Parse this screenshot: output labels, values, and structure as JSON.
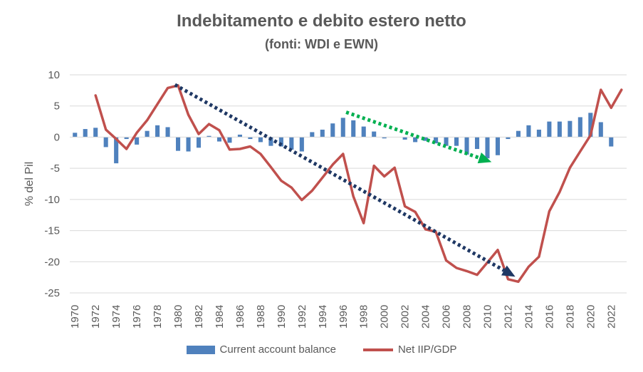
{
  "chart_data": {
    "type": "bar+line",
    "title": "Indebitamento e debito estero netto",
    "subtitle": "(fonti: WDI e EWN)",
    "ylabel": "% del Pil",
    "ylim": [
      -25,
      10
    ],
    "yticks": [
      10,
      5,
      0,
      -5,
      -10,
      -15,
      -20,
      -25
    ],
    "x": [
      1970,
      1971,
      1972,
      1973,
      1974,
      1975,
      1976,
      1977,
      1978,
      1979,
      1980,
      1981,
      1982,
      1983,
      1984,
      1985,
      1986,
      1987,
      1988,
      1989,
      1990,
      1991,
      1992,
      1993,
      1994,
      1995,
      1996,
      1997,
      1998,
      1999,
      2000,
      2001,
      2002,
      2003,
      2004,
      2005,
      2006,
      2007,
      2008,
      2009,
      2010,
      2011,
      2012,
      2013,
      2014,
      2015,
      2016,
      2017,
      2018,
      2019,
      2020,
      2021,
      2022,
      2023
    ],
    "xtick_labels": [
      "1970",
      "1972",
      "1974",
      "1976",
      "1978",
      "1980",
      "1982",
      "1984",
      "1986",
      "1988",
      "1990",
      "1992",
      "1994",
      "1996",
      "1998",
      "2000",
      "2002",
      "2004",
      "2006",
      "2008",
      "2010",
      "2012",
      "2014",
      "2016",
      "2018",
      "2020",
      "2022"
    ],
    "grid": true,
    "legend_position": "bottom",
    "series": [
      {
        "name": "Current account balance",
        "type": "bar",
        "color": "#4F81BD",
        "values": [
          0.7,
          1.3,
          1.5,
          -1.6,
          -4.2,
          -0.3,
          -1.2,
          1.0,
          1.9,
          1.6,
          -2.2,
          -2.3,
          -1.7,
          0.2,
          -0.7,
          -0.9,
          0.4,
          -0.3,
          -0.8,
          -1.4,
          -1.5,
          -2.0,
          -2.3,
          0.8,
          1.2,
          2.2,
          3.1,
          2.7,
          1.7,
          0.9,
          -0.2,
          0.0,
          -0.4,
          -0.8,
          -0.6,
          -1.0,
          -1.4,
          -1.4,
          -2.8,
          -1.9,
          -3.4,
          -2.9,
          -0.3,
          1.0,
          1.9,
          1.2,
          2.5,
          2.5,
          2.6,
          3.2,
          3.9,
          2.4,
          -1.5,
          0.0
        ]
      },
      {
        "name": "Net IIP/GDP",
        "type": "line",
        "color": "#C0504D",
        "x": [
          1972,
          1973,
          1974,
          1975,
          1976,
          1977,
          1978,
          1979,
          1980,
          1981,
          1982,
          1983,
          1984,
          1985,
          1986,
          1987,
          1988,
          1989,
          1990,
          1991,
          1992,
          1993,
          1994,
          1995,
          1996,
          1997,
          1998,
          1999,
          2000,
          2001,
          2002,
          2003,
          2004,
          2005,
          2006,
          2007,
          2008,
          2009,
          2010,
          2011,
          2012,
          2013,
          2014,
          2015,
          2016,
          2017,
          2018,
          2019,
          2020,
          2021,
          2022,
          2023
        ],
        "values": [
          6.7,
          1.2,
          -0.3,
          -1.9,
          0.7,
          2.7,
          5.3,
          7.9,
          8.3,
          3.6,
          0.5,
          2.1,
          1.1,
          -2.0,
          -1.9,
          -1.5,
          -2.7,
          -4.8,
          -7.0,
          -8.1,
          -10.1,
          -8.6,
          -6.5,
          -4.4,
          -2.7,
          -9.5,
          -13.8,
          -4.6,
          -6.3,
          -4.9,
          -11.1,
          -12.0,
          -14.8,
          -15.2,
          -19.8,
          -21.0,
          -21.5,
          -22.1,
          -20.1,
          -18.1,
          -22.8,
          -23.2,
          -20.8,
          -19.2,
          -11.9,
          -8.8,
          -4.9,
          -2.3,
          0.3,
          7.6,
          4.7,
          7.6
        ]
      }
    ],
    "annotations": [
      {
        "type": "dotted-arrow",
        "color": "#1F3864",
        "from": [
          1979.7,
          8.4
        ],
        "to": [
          2012.7,
          -22.4
        ]
      },
      {
        "type": "dotted-arrow",
        "color": "#00B050",
        "from": [
          1996.3,
          4.0
        ],
        "to": [
          2010.4,
          -4.0
        ]
      }
    ]
  }
}
